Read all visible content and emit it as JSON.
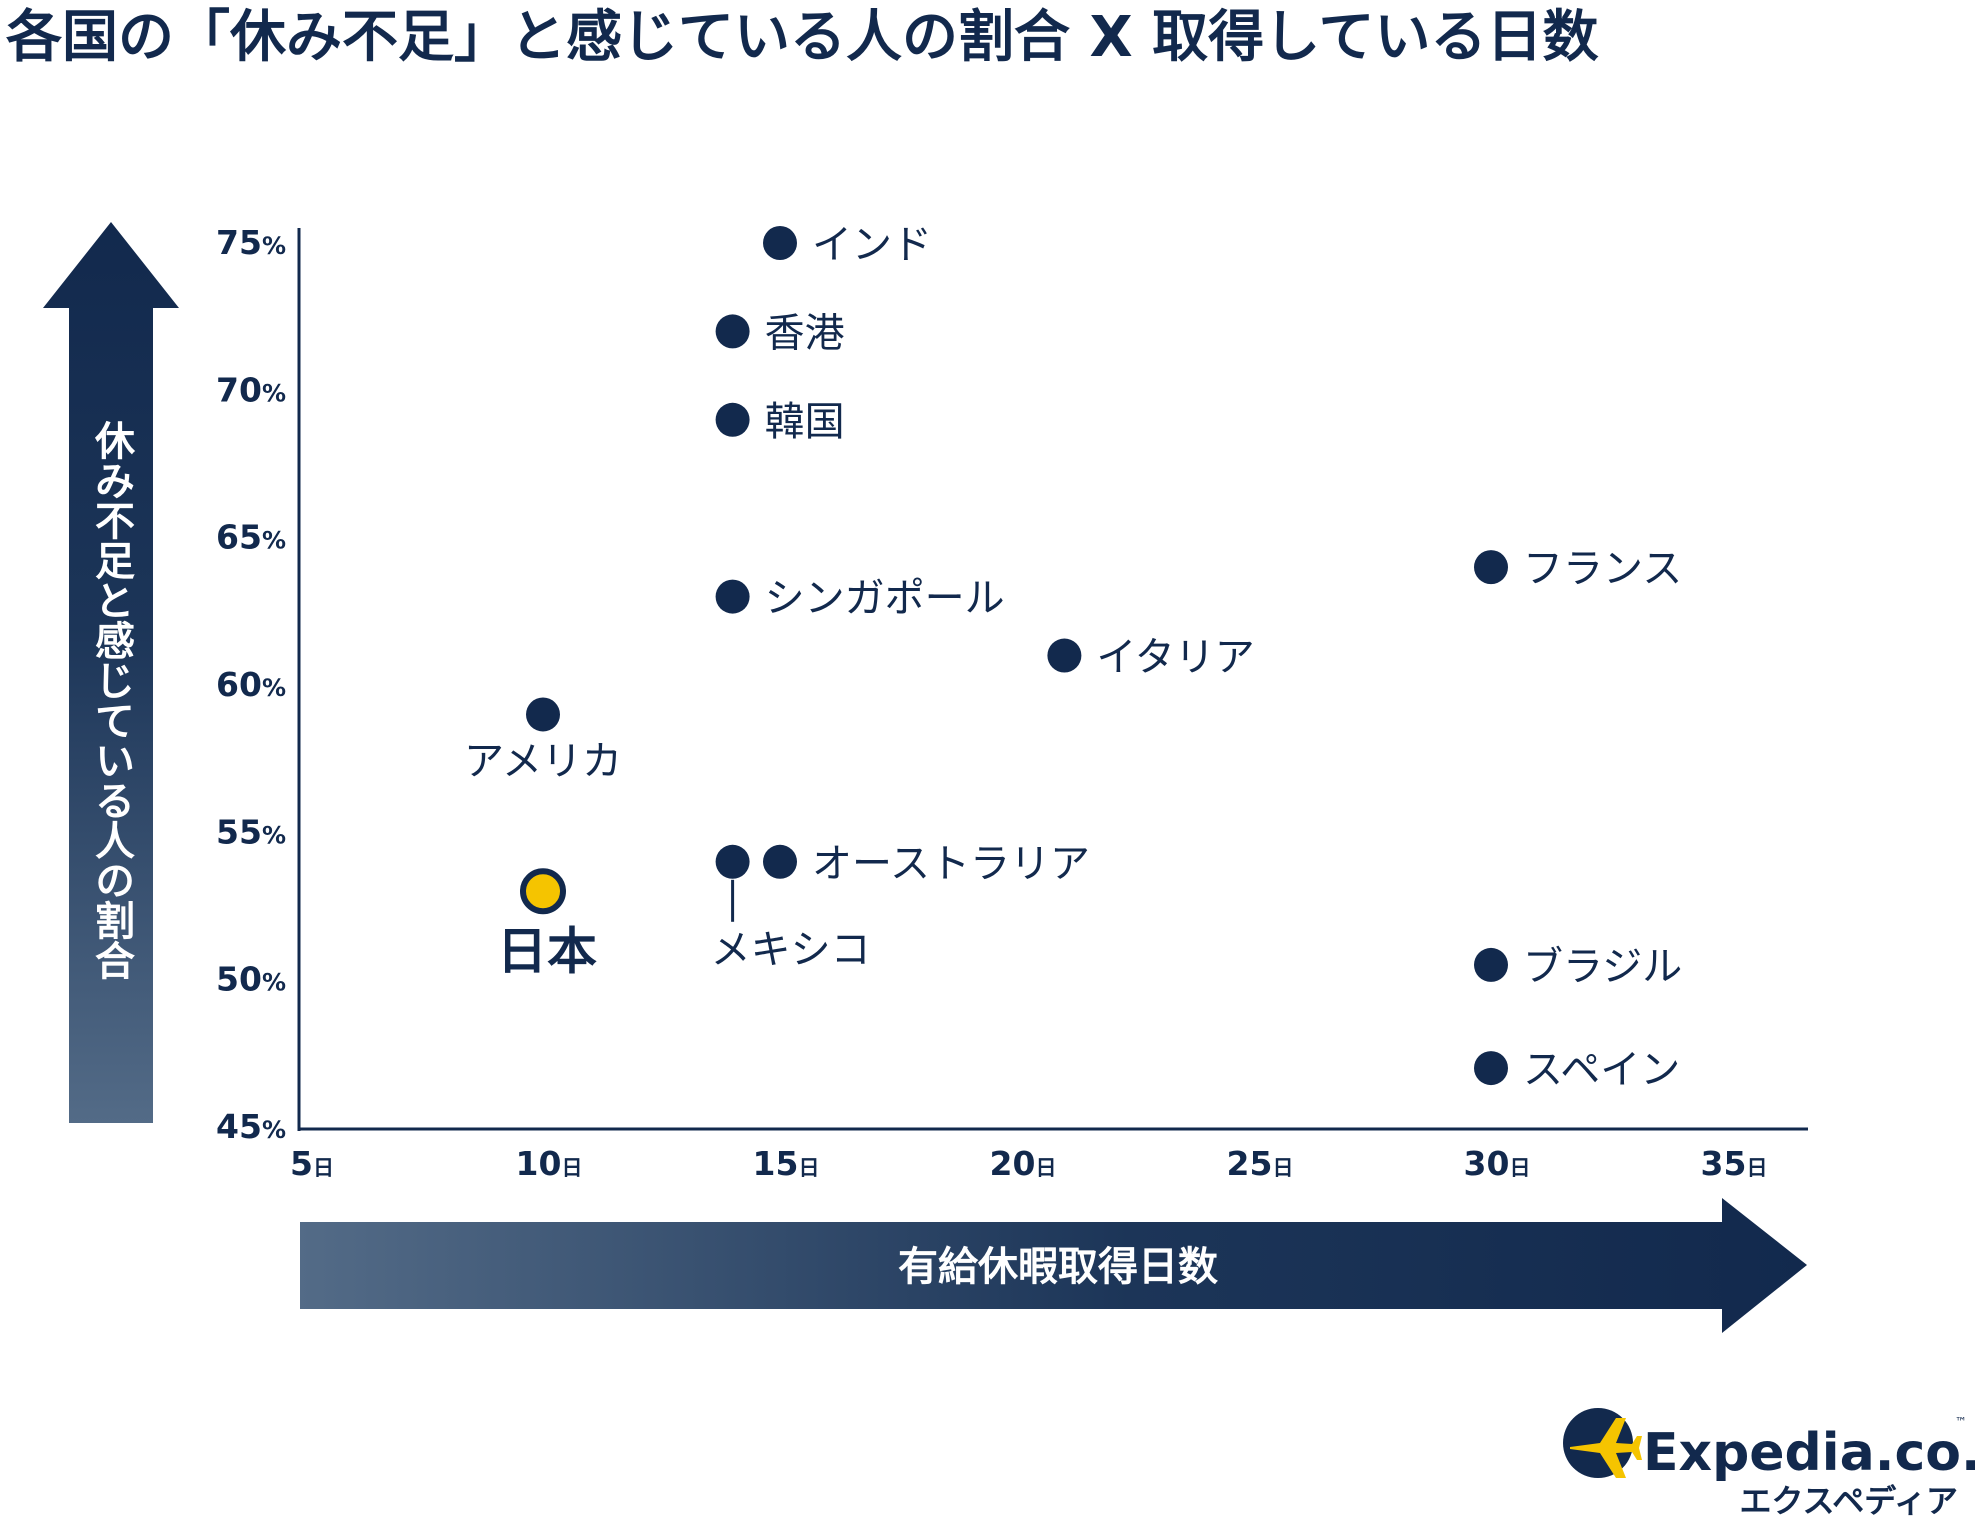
{
  "title": "各国の「休み不足」と感じている人の割合 X 取得している日数",
  "y_axis_label": "休み不足と感じている人の割合",
  "x_axis_label": "有給休暇取得日数",
  "logo": {
    "brand": "Expedia.co.jp",
    "tm": "™",
    "katakana": "エクスペディア"
  },
  "colors": {
    "navy": "#12294d",
    "highlight": "#f5c400",
    "gradient_light": "#536b87"
  },
  "chart_data": {
    "type": "scatter",
    "title": "各国の「休み不足」と感じている人の割合 X 取得している日数",
    "xlabel": "有給休暇取得日数",
    "ylabel": "休み不足と感じている人の割合",
    "xlim": [
      5,
      35
    ],
    "ylim": [
      45,
      75
    ],
    "x_ticks": [
      5,
      10,
      15,
      20,
      25,
      30,
      35
    ],
    "x_tick_unit": "日",
    "y_ticks": [
      45,
      50,
      55,
      60,
      65,
      70,
      75
    ],
    "y_tick_unit": "%",
    "grid": false,
    "points": [
      {
        "label": "インド",
        "x": 15,
        "y": 75
      },
      {
        "label": "香港",
        "x": 14,
        "y": 72
      },
      {
        "label": "韓国",
        "x": 14,
        "y": 69
      },
      {
        "label": "シンガポール",
        "x": 14,
        "y": 63
      },
      {
        "label": "イタリア",
        "x": 21,
        "y": 61
      },
      {
        "label": "フランス",
        "x": 30,
        "y": 64
      },
      {
        "label": "アメリカ",
        "x": 10,
        "y": 59
      },
      {
        "label": "メキシコ",
        "x": 14,
        "y": 54
      },
      {
        "label": "オーストラリア",
        "x": 15,
        "y": 54
      },
      {
        "label": "日本",
        "x": 10,
        "y": 53,
        "highlight": true
      },
      {
        "label": "ブラジル",
        "x": 30,
        "y": 50.5
      },
      {
        "label": "スペイン",
        "x": 30,
        "y": 47
      }
    ]
  }
}
